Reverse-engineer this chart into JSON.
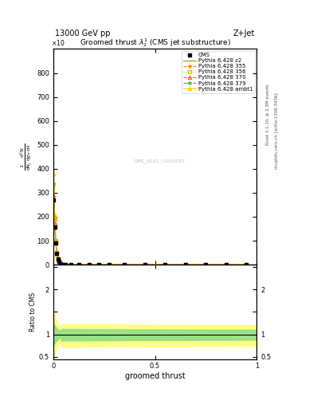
{
  "energy_label": "13000 GeV pp",
  "region_label": "Z+Jet",
  "plot_title": "Groomed thrust $\\lambda_2^1$ (CMS jet substructure)",
  "watermark": "CMS_2021_I1920187",
  "ylabel_main_lines": [
    "mathrm d$^2$N",
    "mathrm d $p_T$ mathrm d lambda"
  ],
  "ylabel_ratio": "Ratio to CMS",
  "xlabel": "groomed thrust",
  "right_label_top": "Rivet 3.1.10, ≥ 2.3M events",
  "right_label_bottom": "mcplots.cern.ch [arXiv:1306.3436]",
  "ylim_main": [
    0,
    900
  ],
  "yticks_main": [
    0,
    100,
    200,
    300,
    400,
    500,
    600,
    700,
    800
  ],
  "ylim_ratio": [
    0.45,
    2.55
  ],
  "xlim": [
    0,
    1
  ],
  "p355_color": "#ff8c00",
  "p356_color": "#cccc00",
  "p370_color": "#ff5555",
  "p379_color": "#55bb55",
  "pambt1_color": "#ffcc00",
  "pz2_color": "#999900",
  "cms_color": "#000000",
  "legend_entries": [
    "CMS",
    "Pythia 6.428 355",
    "Pythia 6.428 356",
    "Pythia 6.428 370",
    "Pythia 6.428 379",
    "Pythia 6.428 ambt1",
    "Pythia 6.428 z2"
  ]
}
